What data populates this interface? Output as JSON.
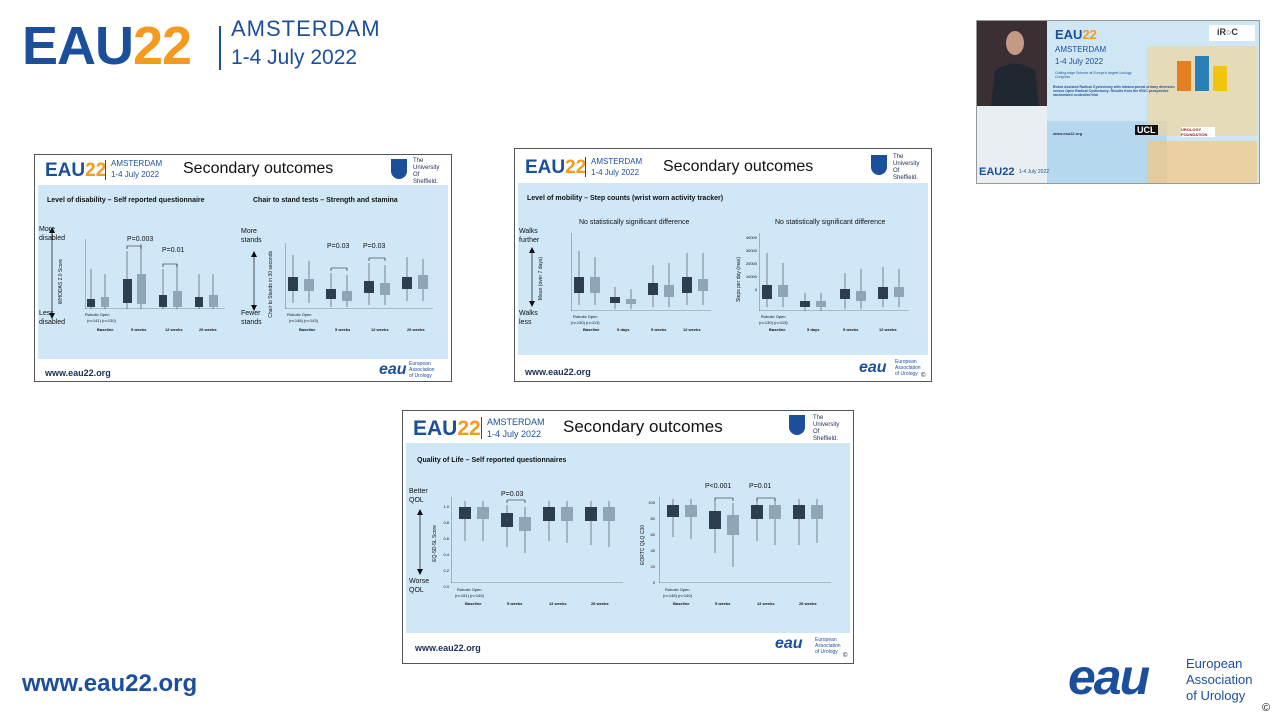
{
  "header": {
    "logo_eau": "EAU",
    "logo_22": "22",
    "city": "AMSTERDAM",
    "dates": "1-4 July 2022"
  },
  "video": {
    "logo_eau": "EAU",
    "logo_22": "22",
    "city": "AMSTERDAM",
    "dates": "1-4 July 2022",
    "tagline": "Cutting-edge Science at Europe's largest Urology Congress",
    "talk_title": "Robot Assisted Radical Cystectomy with intracorporeal urinary diversion versus Open Radical Cystectomy: Results from the iROC prospective randomized controlled trial",
    "url": "www.eau22.org",
    "foot_logo": "EAU22",
    "foot_dates": "1-4 July 2022",
    "iroc": "iR○C",
    "ucl": "UCL",
    "urology_foundation": "UROLOGY FOUNDATION"
  },
  "slides": [
    {
      "title": "Secondary outcomes",
      "city": "AMSTERDAM",
      "dates": "1-4 July 2022",
      "university": [
        "The",
        "University",
        "Of",
        "Sheffield."
      ],
      "url": "www.eau22.org",
      "eau_text": [
        "European",
        "Association",
        "of Urology"
      ],
      "left_panel": {
        "subtitle": "Level of disability – Self reported questionnaire",
        "top_label": [
          "More",
          "disabled"
        ],
        "bottom_label": [
          "Less",
          "disabled"
        ],
        "ylabel": "WHODAS 2.0 Score",
        "pvalues": [
          "P=0.003",
          "P=0.01"
        ],
        "groups": [
          "Baseline",
          "5 weeks",
          "12 weeks",
          "26 weeks"
        ],
        "arms": [
          "Robotic",
          "Open"
        ],
        "ns": [
          "(n=141)",
          "(n=130)",
          "(n=114)",
          "(n=102)",
          "(n=110)",
          "(n=104)",
          "(n=108)",
          "(n=105)"
        ]
      },
      "right_panel": {
        "subtitle": "Chair to stand tests – Strength and stamina",
        "top_label": [
          "More",
          "stands"
        ],
        "bottom_label": [
          "Fewer",
          "stands"
        ],
        "ylabel": "Chair to Stands in 30 seconds",
        "pvalues": [
          "P=0.03",
          "P=0.03"
        ],
        "groups": [
          "Baseline",
          "5 weeks",
          "12 weeks",
          "26 weeks"
        ],
        "arms": [
          "Robotic",
          "Open"
        ],
        "ns": [
          "(n=148)",
          "(n=143)",
          "(n=67)",
          "(n=61)",
          "(n=110)",
          "(n=90)",
          "(n=103)",
          "(n=92)"
        ]
      }
    },
    {
      "title": "Secondary outcomes",
      "city": "AMSTERDAM",
      "dates": "1-4 July 2022",
      "university": [
        "The",
        "University",
        "Of",
        "Sheffield."
      ],
      "url": "www.eau22.org",
      "eau_text": [
        "European",
        "Association",
        "of Urology"
      ],
      "subtitle": "Level of mobility – Step counts (wrist worn activity tracker)",
      "top_label": [
        "Walks",
        "further"
      ],
      "bottom_label": [
        "Walks",
        "less"
      ],
      "left_panel": {
        "note": "No statistically significant difference",
        "ylabel": "Mean (over 7 days)",
        "groups": [
          "Baseline",
          "5 days",
          "5 weeks",
          "12 weeks"
        ],
        "arms": [
          "Robotic",
          "Open"
        ],
        "ns": [
          "(n=130)",
          "(n=113)",
          "(n=123)",
          "(n=110)",
          "(n=112)",
          "(n=98)",
          "(n=97)",
          "(n=76)"
        ]
      },
      "right_panel": {
        "note": "No statistically significant difference",
        "ylabel": "Steps per day (max)",
        "yticks": [
          "40000",
          "30000",
          "20000",
          "10000",
          "0"
        ],
        "groups": [
          "Baseline",
          "5 days",
          "5 weeks",
          "12 weeks"
        ],
        "arms": [
          "Robotic",
          "Open"
        ],
        "ns": [
          "(n=130)",
          "(n=113)",
          "(n=123)",
          "(n=110)",
          "(n=112)",
          "(n=98)",
          "(n=97)",
          "(n=76)"
        ]
      },
      "copyright": "©"
    },
    {
      "title": "Secondary outcomes",
      "city": "AMSTERDAM",
      "dates": "1-4 July 2022",
      "university": [
        "The",
        "University",
        "Of",
        "Sheffield."
      ],
      "url": "www.eau22.org",
      "eau_text": [
        "European",
        "Association",
        "of Urology"
      ],
      "subtitle": "Quality of Life – Self reported questionnaires",
      "top_label": [
        "Better",
        "QOL"
      ],
      "bottom_label": [
        "Worse",
        "QOL"
      ],
      "left_panel": {
        "ylabel": "EQ-5D-5L Score",
        "yticks": [
          "1.0",
          "0.8",
          "0.6",
          "0.4",
          "0.2",
          "0.0"
        ],
        "pvalues": [
          "P=0.03"
        ],
        "groups": [
          "Baseline",
          "5 weeks",
          "12 weeks",
          "26 weeks"
        ],
        "arms": [
          "Robotic",
          "Open"
        ],
        "ns": [
          "(n=151)",
          "(n=145)",
          "(n=130)",
          "(n=116)",
          "(n=127)",
          "(n=113)",
          "(n=110)",
          "(n=110)"
        ]
      },
      "right_panel": {
        "ylabel": "EORTC QLQ C30",
        "yticks": [
          "100",
          "80",
          "60",
          "40",
          "20",
          "0"
        ],
        "pvalues": [
          "P<0.001",
          "P=0.01"
        ],
        "groups": [
          "Baseline",
          "5 weeks",
          "12 weeks",
          "26 weeks"
        ],
        "arms": [
          "Robotic",
          "Open"
        ],
        "ns": [
          "(n=148)",
          "(n=140)",
          "(n=123)",
          "(n=113)",
          "(n=125)",
          "(n=108)",
          "(n=107)",
          "(n=109)"
        ]
      },
      "copyright": "©"
    }
  ],
  "footer": {
    "url": "www.eau22.org",
    "eau_logo": "eau",
    "eau_text": [
      "European",
      "Association",
      "of Urology"
    ],
    "copyright": "©"
  },
  "colors": {
    "brand_blue": "#1b4f9c",
    "brand_orange": "#f39a1f",
    "panel_bg": "#cfe7f6",
    "box_robotic": "#2c3e50",
    "box_open": "#8fa6b8"
  }
}
